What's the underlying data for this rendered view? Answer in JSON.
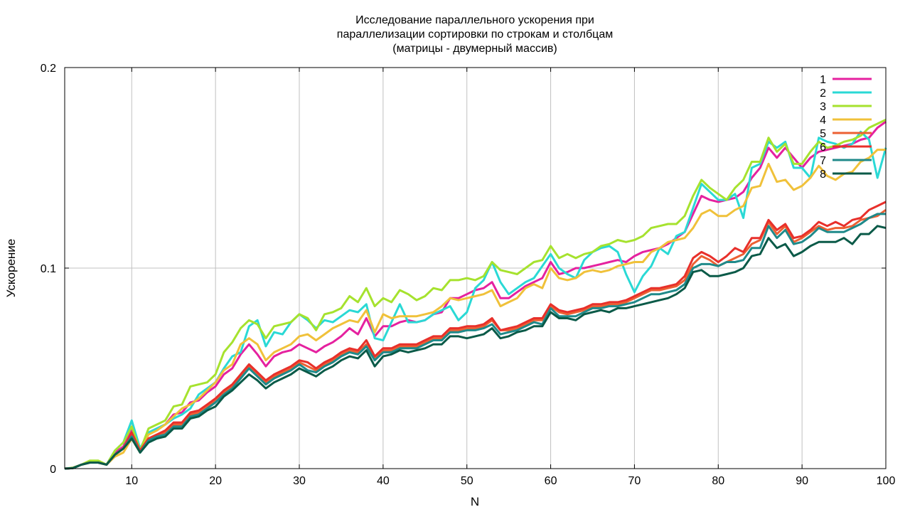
{
  "chart_data": {
    "type": "line",
    "title": [
      "Исследование параллельного ускорения при",
      "параллелизации сортировки по строкам и столбцам",
      "(матрицы - двумерный массив)"
    ],
    "xlabel": "N",
    "ylabel": "Ускорение",
    "xlim": [
      2,
      100
    ],
    "ylim": [
      0,
      0.2
    ],
    "xticks": [
      10,
      20,
      30,
      40,
      50,
      60,
      70,
      80,
      90,
      100
    ],
    "xtick_labels": [
      "10",
      "20",
      "30",
      "40",
      "50",
      "60",
      "70",
      "80",
      "90",
      "100"
    ],
    "yticks": [
      0,
      0.1,
      0.2
    ],
    "ytick_labels": [
      "0",
      "0.1",
      "0.2"
    ],
    "grid": true,
    "legend_position": "top-right",
    "x": [
      2,
      3,
      4,
      5,
      6,
      7,
      8,
      9,
      10,
      11,
      12,
      13,
      14,
      15,
      16,
      17,
      18,
      19,
      20,
      21,
      22,
      23,
      24,
      25,
      26,
      27,
      28,
      29,
      30,
      31,
      32,
      33,
      34,
      35,
      36,
      37,
      38,
      39,
      40,
      41,
      42,
      43,
      44,
      45,
      46,
      47,
      48,
      49,
      50,
      51,
      52,
      53,
      54,
      55,
      56,
      57,
      58,
      59,
      60,
      61,
      62,
      63,
      64,
      65,
      66,
      67,
      68,
      69,
      70,
      71,
      72,
      73,
      74,
      75,
      76,
      77,
      78,
      79,
      80,
      81,
      82,
      83,
      84,
      85,
      86,
      87,
      88,
      89,
      90,
      91,
      92,
      93,
      94,
      95,
      96,
      97,
      98,
      99,
      100
    ],
    "series": [
      {
        "name": "1",
        "color": "#e5219f",
        "values": [
          0,
          0.0003,
          0.002,
          0.003,
          0.003,
          0.002,
          0.008,
          0.011,
          0.02,
          0.009,
          0.018,
          0.02,
          0.022,
          0.027,
          0.028,
          0.033,
          0.034,
          0.038,
          0.041,
          0.047,
          0.05,
          0.057,
          0.062,
          0.057,
          0.051,
          0.056,
          0.058,
          0.059,
          0.062,
          0.06,
          0.058,
          0.061,
          0.063,
          0.066,
          0.07,
          0.067,
          0.075,
          0.066,
          0.071,
          0.071,
          0.073,
          0.074,
          0.073,
          0.074,
          0.077,
          0.078,
          0.085,
          0.085,
          0.087,
          0.089,
          0.09,
          0.093,
          0.085,
          0.085,
          0.088,
          0.091,
          0.093,
          0.095,
          0.103,
          0.097,
          0.098,
          0.1,
          0.1,
          0.101,
          0.102,
          0.103,
          0.104,
          0.103,
          0.106,
          0.108,
          0.109,
          0.11,
          0.112,
          0.115,
          0.118,
          0.127,
          0.136,
          0.134,
          0.133,
          0.134,
          0.135,
          0.138,
          0.145,
          0.15,
          0.16,
          0.155,
          0.16,
          0.155,
          0.15,
          0.155,
          0.158,
          0.159,
          0.16,
          0.161,
          0.162,
          0.164,
          0.165,
          0.17,
          0.173
        ]
      },
      {
        "name": "2",
        "color": "#2ad9d5",
        "values": [
          0,
          0.0003,
          0.002,
          0.003,
          0.003,
          0.002,
          0.009,
          0.013,
          0.024,
          0.01,
          0.018,
          0.02,
          0.022,
          0.025,
          0.027,
          0.03,
          0.037,
          0.04,
          0.043,
          0.05,
          0.056,
          0.058,
          0.071,
          0.074,
          0.061,
          0.068,
          0.067,
          0.073,
          0.077,
          0.074,
          0.07,
          0.074,
          0.073,
          0.076,
          0.079,
          0.078,
          0.082,
          0.065,
          0.064,
          0.073,
          0.082,
          0.073,
          0.073,
          0.074,
          0.077,
          0.079,
          0.081,
          0.074,
          0.078,
          0.09,
          0.094,
          0.103,
          0.093,
          0.087,
          0.09,
          0.093,
          0.095,
          0.101,
          0.107,
          0.1,
          0.097,
          0.095,
          0.104,
          0.108,
          0.11,
          0.111,
          0.108,
          0.097,
          0.088,
          0.096,
          0.101,
          0.11,
          0.107,
          0.116,
          0.118,
          0.13,
          0.142,
          0.138,
          0.134,
          0.134,
          0.137,
          0.125,
          0.15,
          0.152,
          0.163,
          0.16,
          0.163,
          0.15,
          0.15,
          0.145,
          0.165,
          0.163,
          0.162,
          0.16,
          0.162,
          0.168,
          0.164,
          0.145,
          0.16
        ]
      },
      {
        "name": "3",
        "color": "#a6e22e",
        "values": [
          0,
          0.0005,
          0.002,
          0.004,
          0.004,
          0.002,
          0.009,
          0.013,
          0.021,
          0.009,
          0.02,
          0.022,
          0.024,
          0.031,
          0.032,
          0.041,
          0.042,
          0.043,
          0.047,
          0.058,
          0.063,
          0.07,
          0.074,
          0.072,
          0.065,
          0.071,
          0.072,
          0.073,
          0.077,
          0.075,
          0.069,
          0.077,
          0.078,
          0.08,
          0.086,
          0.083,
          0.09,
          0.081,
          0.085,
          0.083,
          0.089,
          0.087,
          0.084,
          0.086,
          0.09,
          0.089,
          0.094,
          0.094,
          0.095,
          0.094,
          0.096,
          0.103,
          0.099,
          0.098,
          0.097,
          0.1,
          0.103,
          0.104,
          0.111,
          0.105,
          0.107,
          0.105,
          0.107,
          0.108,
          0.111,
          0.112,
          0.114,
          0.113,
          0.114,
          0.116,
          0.12,
          0.121,
          0.122,
          0.122,
          0.126,
          0.136,
          0.144,
          0.14,
          0.137,
          0.134,
          0.14,
          0.144,
          0.153,
          0.153,
          0.165,
          0.158,
          0.162,
          0.152,
          0.152,
          0.158,
          0.163,
          0.16,
          0.161,
          0.163,
          0.164,
          0.166,
          0.17,
          0.172,
          0.174
        ]
      },
      {
        "name": "4",
        "color": "#f0c13a",
        "values": [
          0,
          0.0003,
          0.002,
          0.003,
          0.003,
          0.002,
          0.006,
          0.008,
          0.015,
          0.008,
          0.017,
          0.019,
          0.022,
          0.026,
          0.03,
          0.032,
          0.035,
          0.039,
          0.043,
          0.049,
          0.052,
          0.062,
          0.065,
          0.062,
          0.054,
          0.058,
          0.06,
          0.062,
          0.066,
          0.067,
          0.064,
          0.067,
          0.07,
          0.072,
          0.074,
          0.073,
          0.079,
          0.068,
          0.077,
          0.075,
          0.076,
          0.076,
          0.076,
          0.077,
          0.078,
          0.081,
          0.085,
          0.084,
          0.085,
          0.086,
          0.087,
          0.089,
          0.081,
          0.083,
          0.085,
          0.09,
          0.092,
          0.09,
          0.1,
          0.095,
          0.094,
          0.095,
          0.098,
          0.099,
          0.098,
          0.099,
          0.101,
          0.102,
          0.103,
          0.103,
          0.108,
          0.11,
          0.113,
          0.114,
          0.115,
          0.12,
          0.127,
          0.129,
          0.126,
          0.126,
          0.129,
          0.131,
          0.14,
          0.141,
          0.152,
          0.143,
          0.144,
          0.139,
          0.141,
          0.145,
          0.151,
          0.146,
          0.144,
          0.147,
          0.148,
          0.153,
          0.155,
          0.159,
          0.159
        ]
      },
      {
        "name": "5",
        "color": "#ec6033",
        "values": [
          0,
          0.0003,
          0.002,
          0.003,
          0.003,
          0.002,
          0.007,
          0.01,
          0.017,
          0.009,
          0.015,
          0.017,
          0.018,
          0.022,
          0.022,
          0.027,
          0.028,
          0.031,
          0.034,
          0.038,
          0.041,
          0.046,
          0.051,
          0.047,
          0.043,
          0.046,
          0.048,
          0.05,
          0.053,
          0.051,
          0.049,
          0.052,
          0.054,
          0.057,
          0.059,
          0.058,
          0.062,
          0.055,
          0.059,
          0.059,
          0.061,
          0.061,
          0.061,
          0.063,
          0.065,
          0.065,
          0.069,
          0.069,
          0.07,
          0.07,
          0.071,
          0.074,
          0.069,
          0.069,
          0.07,
          0.072,
          0.074,
          0.074,
          0.081,
          0.078,
          0.077,
          0.078,
          0.079,
          0.081,
          0.081,
          0.082,
          0.082,
          0.083,
          0.085,
          0.087,
          0.089,
          0.089,
          0.09,
          0.091,
          0.094,
          0.102,
          0.106,
          0.104,
          0.101,
          0.103,
          0.105,
          0.107,
          0.112,
          0.114,
          0.123,
          0.117,
          0.121,
          0.113,
          0.115,
          0.118,
          0.121,
          0.119,
          0.12,
          0.12,
          0.121,
          0.124,
          0.125,
          0.126,
          0.129
        ]
      },
      {
        "name": "6",
        "color": "#e8302b",
        "values": [
          0,
          0.0003,
          0.002,
          0.003,
          0.003,
          0.002,
          0.007,
          0.01,
          0.018,
          0.009,
          0.015,
          0.017,
          0.019,
          0.023,
          0.023,
          0.028,
          0.029,
          0.032,
          0.035,
          0.039,
          0.042,
          0.047,
          0.052,
          0.048,
          0.044,
          0.047,
          0.049,
          0.051,
          0.054,
          0.053,
          0.05,
          0.053,
          0.055,
          0.058,
          0.06,
          0.059,
          0.064,
          0.056,
          0.06,
          0.06,
          0.062,
          0.062,
          0.062,
          0.064,
          0.066,
          0.066,
          0.07,
          0.07,
          0.071,
          0.071,
          0.072,
          0.075,
          0.069,
          0.07,
          0.071,
          0.073,
          0.075,
          0.075,
          0.082,
          0.079,
          0.078,
          0.079,
          0.08,
          0.082,
          0.082,
          0.083,
          0.083,
          0.084,
          0.086,
          0.088,
          0.09,
          0.09,
          0.091,
          0.092,
          0.096,
          0.105,
          0.108,
          0.106,
          0.103,
          0.106,
          0.11,
          0.108,
          0.115,
          0.115,
          0.124,
          0.119,
          0.122,
          0.115,
          0.116,
          0.119,
          0.123,
          0.121,
          0.123,
          0.121,
          0.124,
          0.125,
          0.129,
          0.131,
          0.133
        ]
      },
      {
        "name": "7",
        "color": "#1f8a8a",
        "values": [
          0,
          0.0003,
          0.002,
          0.003,
          0.003,
          0.002,
          0.007,
          0.01,
          0.016,
          0.008,
          0.014,
          0.016,
          0.017,
          0.021,
          0.021,
          0.026,
          0.027,
          0.03,
          0.033,
          0.037,
          0.04,
          0.045,
          0.05,
          0.046,
          0.042,
          0.045,
          0.047,
          0.049,
          0.052,
          0.049,
          0.048,
          0.051,
          0.053,
          0.056,
          0.058,
          0.057,
          0.061,
          0.054,
          0.058,
          0.058,
          0.06,
          0.06,
          0.06,
          0.062,
          0.064,
          0.064,
          0.068,
          0.068,
          0.069,
          0.069,
          0.07,
          0.072,
          0.067,
          0.068,
          0.069,
          0.071,
          0.073,
          0.072,
          0.08,
          0.076,
          0.076,
          0.076,
          0.078,
          0.08,
          0.08,
          0.081,
          0.081,
          0.082,
          0.083,
          0.085,
          0.087,
          0.087,
          0.088,
          0.089,
          0.092,
          0.1,
          0.102,
          0.102,
          0.101,
          0.103,
          0.103,
          0.104,
          0.11,
          0.11,
          0.121,
          0.115,
          0.119,
          0.112,
          0.113,
          0.116,
          0.12,
          0.118,
          0.118,
          0.118,
          0.12,
          0.122,
          0.125,
          0.127,
          0.127
        ]
      },
      {
        "name": "8",
        "color": "#0a5a48",
        "values": [
          0,
          0.0003,
          0.002,
          0.003,
          0.003,
          0.002,
          0.007,
          0.01,
          0.015,
          0.008,
          0.013,
          0.015,
          0.016,
          0.02,
          0.02,
          0.025,
          0.026,
          0.029,
          0.031,
          0.036,
          0.039,
          0.043,
          0.047,
          0.044,
          0.04,
          0.043,
          0.045,
          0.047,
          0.05,
          0.048,
          0.046,
          0.049,
          0.051,
          0.054,
          0.056,
          0.055,
          0.059,
          0.051,
          0.056,
          0.057,
          0.059,
          0.058,
          0.059,
          0.06,
          0.062,
          0.062,
          0.066,
          0.066,
          0.065,
          0.066,
          0.067,
          0.07,
          0.065,
          0.066,
          0.068,
          0.069,
          0.071,
          0.071,
          0.078,
          0.075,
          0.075,
          0.074,
          0.077,
          0.078,
          0.079,
          0.078,
          0.08,
          0.08,
          0.081,
          0.082,
          0.083,
          0.084,
          0.085,
          0.087,
          0.09,
          0.098,
          0.099,
          0.096,
          0.096,
          0.097,
          0.098,
          0.1,
          0.106,
          0.107,
          0.115,
          0.11,
          0.112,
          0.106,
          0.108,
          0.111,
          0.113,
          0.113,
          0.113,
          0.115,
          0.112,
          0.117,
          0.117,
          0.121,
          0.12
        ]
      }
    ]
  }
}
